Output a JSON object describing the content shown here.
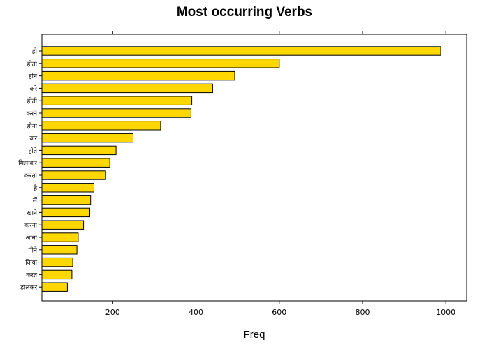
{
  "chart_data": {
    "type": "bar",
    "orientation": "horizontal",
    "title": "Most occurring Verbs",
    "xlabel": "Freq",
    "ylabel": "",
    "xlim": [
      30,
      1050
    ],
    "xticks": [
      200,
      400,
      600,
      800,
      1000
    ],
    "grid": false,
    "bar_color": "#FFD700",
    "bar_edge_color": "#000000",
    "categories": [
      "हो",
      "होता",
      "होने",
      "करे",
      "होती",
      "करने",
      "होना",
      "कर",
      "होते",
      "मिलाकर",
      "करता",
      "है",
      "लें",
      "खाने",
      "करना",
      "आना",
      "पीने",
      "किया",
      "करते",
      "डालकर"
    ],
    "values": [
      988,
      600,
      493,
      440,
      390,
      388,
      315,
      249,
      208,
      193,
      183,
      155,
      147,
      145,
      130,
      117,
      114,
      104,
      102,
      91
    ]
  }
}
